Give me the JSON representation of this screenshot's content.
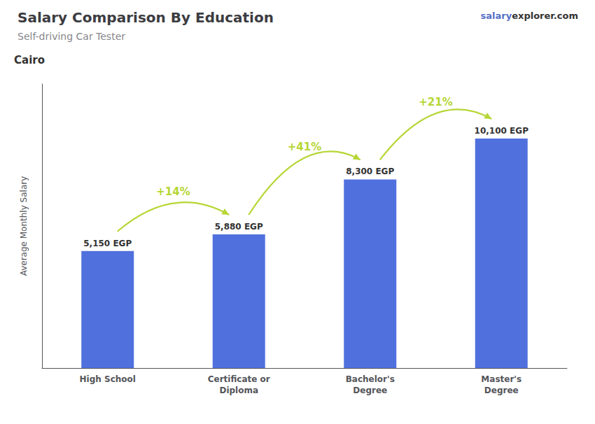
{
  "chart_data": {
    "type": "bar",
    "title": "Salary Comparison By Education",
    "subtitle": "Self-driving Car Tester",
    "annotations": [
      "Cairo",
      "salary",
      "explorer.com"
    ],
    "ylabel": "Average Monthly Salary",
    "categories": [
      "High School",
      "Certificate or\nDiploma",
      "Bachelor's\nDegree",
      "Master's\nDegree"
    ],
    "values": [
      5150,
      5880,
      8300,
      10100
    ],
    "value_labels": [
      "5,150 EGP",
      "5,880 EGP",
      "8,300 EGP",
      "10,100 EGP"
    ],
    "data_labels": true,
    "changes": [
      14,
      41,
      21
    ],
    "change_labels": [
      "+14%",
      "+41%",
      "+21%"
    ],
    "ylim": [
      0,
      12500
    ],
    "tick_labels": "x",
    "grid": false
  }
}
